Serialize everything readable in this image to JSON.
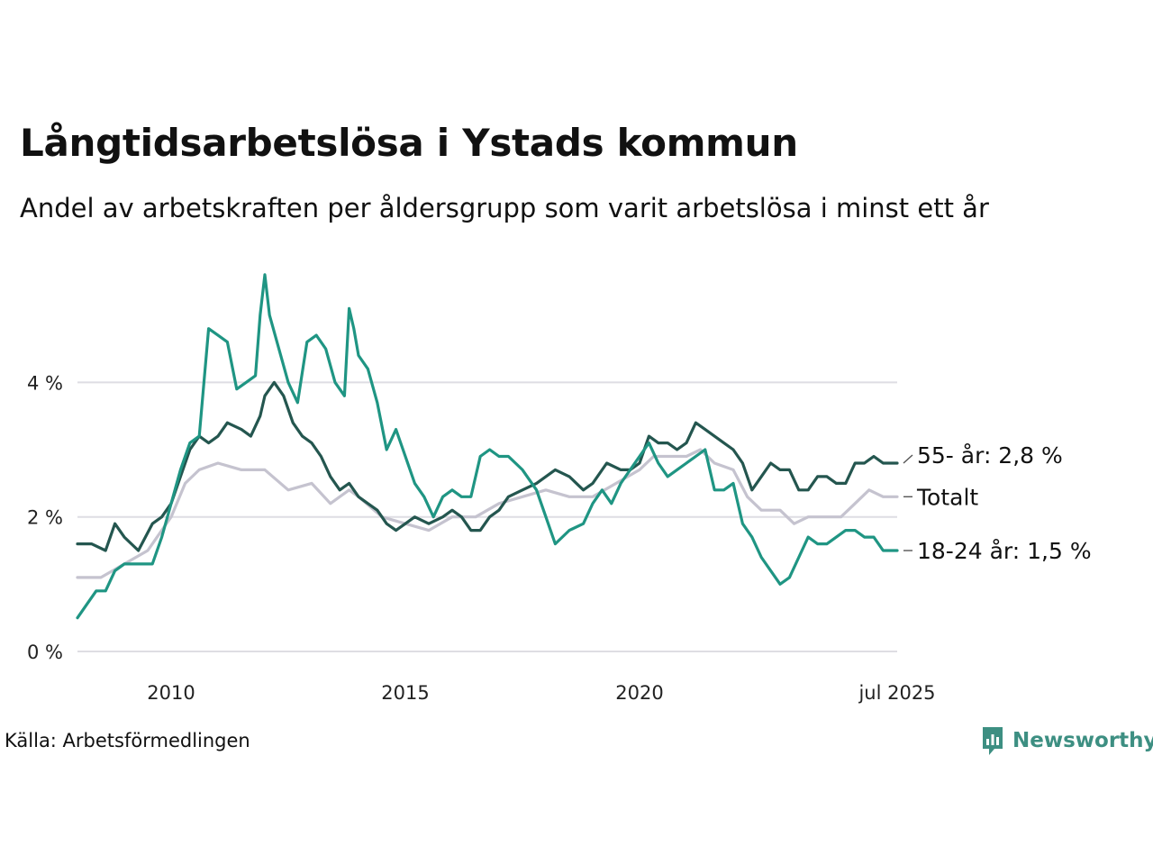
{
  "title": "Långtidsarbetslösa i Ystads kommun",
  "subtitle": "Andel av arbetskraften per åldersgrupp som varit arbetslösa i minst ett år",
  "source": "Källa: Arbetsförmedlingen",
  "brand": {
    "name": "Newsworthy",
    "icon": "newsworthy-logo-icon",
    "color": "#3d8f82"
  },
  "chart_data": {
    "type": "line",
    "x_range": [
      2008.0,
      2025.5
    ],
    "ylim": [
      0,
      5.8
    ],
    "y_ticks": [
      {
        "value": 0,
        "label": "0 %"
      },
      {
        "value": 2,
        "label": "2 %"
      },
      {
        "value": 4,
        "label": "4 %"
      }
    ],
    "x_ticks": [
      {
        "value": 2010,
        "label": "2010"
      },
      {
        "value": 2015,
        "label": "2015"
      },
      {
        "value": 2020,
        "label": "2020"
      },
      {
        "value": 2025.5,
        "label": "jul 2025"
      }
    ],
    "grid": true,
    "legend": "end-labels",
    "series": [
      {
        "name": "Totalt",
        "label": "Totalt",
        "color": "#c5c3cf",
        "points": [
          [
            2008.0,
            1.1
          ],
          [
            2008.5,
            1.1
          ],
          [
            2009.0,
            1.3
          ],
          [
            2009.5,
            1.5
          ],
          [
            2009.8,
            1.8
          ],
          [
            2010.0,
            2.0
          ],
          [
            2010.3,
            2.5
          ],
          [
            2010.6,
            2.7
          ],
          [
            2011.0,
            2.8
          ],
          [
            2011.5,
            2.7
          ],
          [
            2012.0,
            2.7
          ],
          [
            2012.5,
            2.4
          ],
          [
            2013.0,
            2.5
          ],
          [
            2013.4,
            2.2
          ],
          [
            2013.8,
            2.4
          ],
          [
            2014.0,
            2.3
          ],
          [
            2014.5,
            2.0
          ],
          [
            2015.0,
            1.9
          ],
          [
            2015.5,
            1.8
          ],
          [
            2016.0,
            2.0
          ],
          [
            2016.5,
            2.0
          ],
          [
            2017.0,
            2.2
          ],
          [
            2017.5,
            2.3
          ],
          [
            2018.0,
            2.4
          ],
          [
            2018.5,
            2.3
          ],
          [
            2019.0,
            2.3
          ],
          [
            2019.5,
            2.5
          ],
          [
            2020.0,
            2.7
          ],
          [
            2020.3,
            2.9
          ],
          [
            2020.6,
            2.9
          ],
          [
            2021.0,
            2.9
          ],
          [
            2021.3,
            3.0
          ],
          [
            2021.6,
            2.8
          ],
          [
            2022.0,
            2.7
          ],
          [
            2022.3,
            2.3
          ],
          [
            2022.6,
            2.1
          ],
          [
            2023.0,
            2.1
          ],
          [
            2023.3,
            1.9
          ],
          [
            2023.6,
            2.0
          ],
          [
            2024.0,
            2.0
          ],
          [
            2024.3,
            2.0
          ],
          [
            2024.6,
            2.2
          ],
          [
            2024.9,
            2.4
          ],
          [
            2025.2,
            2.3
          ],
          [
            2025.5,
            2.3
          ]
        ],
        "last_value": 2.3
      },
      {
        "name": "55- år",
        "label": "55- år: 2,8 %",
        "color": "#24564f",
        "points": [
          [
            2008.0,
            1.6
          ],
          [
            2008.3,
            1.6
          ],
          [
            2008.6,
            1.5
          ],
          [
            2008.8,
            1.9
          ],
          [
            2009.0,
            1.7
          ],
          [
            2009.3,
            1.5
          ],
          [
            2009.6,
            1.9
          ],
          [
            2009.8,
            2.0
          ],
          [
            2010.0,
            2.2
          ],
          [
            2010.2,
            2.6
          ],
          [
            2010.4,
            3.0
          ],
          [
            2010.6,
            3.2
          ],
          [
            2010.8,
            3.1
          ],
          [
            2011.0,
            3.2
          ],
          [
            2011.2,
            3.4
          ],
          [
            2011.5,
            3.3
          ],
          [
            2011.7,
            3.2
          ],
          [
            2011.9,
            3.5
          ],
          [
            2012.0,
            3.8
          ],
          [
            2012.2,
            4.0
          ],
          [
            2012.4,
            3.8
          ],
          [
            2012.6,
            3.4
          ],
          [
            2012.8,
            3.2
          ],
          [
            2013.0,
            3.1
          ],
          [
            2013.2,
            2.9
          ],
          [
            2013.4,
            2.6
          ],
          [
            2013.6,
            2.4
          ],
          [
            2013.8,
            2.5
          ],
          [
            2014.0,
            2.3
          ],
          [
            2014.2,
            2.2
          ],
          [
            2014.4,
            2.1
          ],
          [
            2014.6,
            1.9
          ],
          [
            2014.8,
            1.8
          ],
          [
            2015.0,
            1.9
          ],
          [
            2015.2,
            2.0
          ],
          [
            2015.5,
            1.9
          ],
          [
            2015.8,
            2.0
          ],
          [
            2016.0,
            2.1
          ],
          [
            2016.2,
            2.0
          ],
          [
            2016.4,
            1.8
          ],
          [
            2016.6,
            1.8
          ],
          [
            2016.8,
            2.0
          ],
          [
            2017.0,
            2.1
          ],
          [
            2017.2,
            2.3
          ],
          [
            2017.5,
            2.4
          ],
          [
            2017.8,
            2.5
          ],
          [
            2018.0,
            2.6
          ],
          [
            2018.2,
            2.7
          ],
          [
            2018.5,
            2.6
          ],
          [
            2018.8,
            2.4
          ],
          [
            2019.0,
            2.5
          ],
          [
            2019.3,
            2.8
          ],
          [
            2019.6,
            2.7
          ],
          [
            2019.8,
            2.7
          ],
          [
            2020.0,
            2.8
          ],
          [
            2020.2,
            3.2
          ],
          [
            2020.4,
            3.1
          ],
          [
            2020.6,
            3.1
          ],
          [
            2020.8,
            3.0
          ],
          [
            2021.0,
            3.1
          ],
          [
            2021.2,
            3.4
          ],
          [
            2021.4,
            3.3
          ],
          [
            2021.6,
            3.2
          ],
          [
            2021.8,
            3.1
          ],
          [
            2022.0,
            3.0
          ],
          [
            2022.2,
            2.8
          ],
          [
            2022.4,
            2.4
          ],
          [
            2022.6,
            2.6
          ],
          [
            2022.8,
            2.8
          ],
          [
            2023.0,
            2.7
          ],
          [
            2023.2,
            2.7
          ],
          [
            2023.4,
            2.4
          ],
          [
            2023.6,
            2.4
          ],
          [
            2023.8,
            2.6
          ],
          [
            2024.0,
            2.6
          ],
          [
            2024.2,
            2.5
          ],
          [
            2024.4,
            2.5
          ],
          [
            2024.6,
            2.8
          ],
          [
            2024.8,
            2.8
          ],
          [
            2025.0,
            2.9
          ],
          [
            2025.2,
            2.8
          ],
          [
            2025.4,
            2.8
          ],
          [
            2025.5,
            2.8
          ]
        ],
        "last_value": 2.8
      },
      {
        "name": "18-24 år",
        "label": "18-24 år: 1,5 %",
        "color": "#1f9583",
        "points": [
          [
            2008.0,
            0.5
          ],
          [
            2008.2,
            0.7
          ],
          [
            2008.4,
            0.9
          ],
          [
            2008.6,
            0.9
          ],
          [
            2008.8,
            1.2
          ],
          [
            2009.0,
            1.3
          ],
          [
            2009.2,
            1.3
          ],
          [
            2009.4,
            1.3
          ],
          [
            2009.6,
            1.3
          ],
          [
            2009.8,
            1.7
          ],
          [
            2010.0,
            2.2
          ],
          [
            2010.2,
            2.7
          ],
          [
            2010.4,
            3.1
          ],
          [
            2010.6,
            3.2
          ],
          [
            2010.7,
            4.0
          ],
          [
            2010.8,
            4.8
          ],
          [
            2011.0,
            4.7
          ],
          [
            2011.2,
            4.6
          ],
          [
            2011.4,
            3.9
          ],
          [
            2011.6,
            4.0
          ],
          [
            2011.8,
            4.1
          ],
          [
            2011.9,
            5.0
          ],
          [
            2012.0,
            5.6
          ],
          [
            2012.1,
            5.0
          ],
          [
            2012.3,
            4.5
          ],
          [
            2012.5,
            4.0
          ],
          [
            2012.7,
            3.7
          ],
          [
            2012.9,
            4.6
          ],
          [
            2013.1,
            4.7
          ],
          [
            2013.3,
            4.5
          ],
          [
            2013.5,
            4.0
          ],
          [
            2013.7,
            3.8
          ],
          [
            2013.8,
            5.1
          ],
          [
            2013.9,
            4.8
          ],
          [
            2014.0,
            4.4
          ],
          [
            2014.2,
            4.2
          ],
          [
            2014.4,
            3.7
          ],
          [
            2014.6,
            3.0
          ],
          [
            2014.8,
            3.3
          ],
          [
            2015.0,
            2.9
          ],
          [
            2015.2,
            2.5
          ],
          [
            2015.4,
            2.3
          ],
          [
            2015.6,
            2.0
          ],
          [
            2015.8,
            2.3
          ],
          [
            2016.0,
            2.4
          ],
          [
            2016.2,
            2.3
          ],
          [
            2016.4,
            2.3
          ],
          [
            2016.6,
            2.9
          ],
          [
            2016.8,
            3.0
          ],
          [
            2017.0,
            2.9
          ],
          [
            2017.2,
            2.9
          ],
          [
            2017.5,
            2.7
          ],
          [
            2017.8,
            2.4
          ],
          [
            2018.0,
            2.0
          ],
          [
            2018.2,
            1.6
          ],
          [
            2018.5,
            1.8
          ],
          [
            2018.8,
            1.9
          ],
          [
            2019.0,
            2.2
          ],
          [
            2019.2,
            2.4
          ],
          [
            2019.4,
            2.2
          ],
          [
            2019.6,
            2.5
          ],
          [
            2019.8,
            2.7
          ],
          [
            2020.0,
            2.9
          ],
          [
            2020.2,
            3.1
          ],
          [
            2020.4,
            2.8
          ],
          [
            2020.6,
            2.6
          ],
          [
            2020.8,
            2.7
          ],
          [
            2021.0,
            2.8
          ],
          [
            2021.2,
            2.9
          ],
          [
            2021.4,
            3.0
          ],
          [
            2021.6,
            2.4
          ],
          [
            2021.8,
            2.4
          ],
          [
            2022.0,
            2.5
          ],
          [
            2022.2,
            1.9
          ],
          [
            2022.4,
            1.7
          ],
          [
            2022.6,
            1.4
          ],
          [
            2022.8,
            1.2
          ],
          [
            2023.0,
            1.0
          ],
          [
            2023.2,
            1.1
          ],
          [
            2023.4,
            1.4
          ],
          [
            2023.6,
            1.7
          ],
          [
            2023.8,
            1.6
          ],
          [
            2024.0,
            1.6
          ],
          [
            2024.2,
            1.7
          ],
          [
            2024.4,
            1.8
          ],
          [
            2024.6,
            1.8
          ],
          [
            2024.8,
            1.7
          ],
          [
            2025.0,
            1.7
          ],
          [
            2025.2,
            1.5
          ],
          [
            2025.4,
            1.5
          ],
          [
            2025.5,
            1.5
          ]
        ],
        "last_value": 1.5
      }
    ]
  }
}
